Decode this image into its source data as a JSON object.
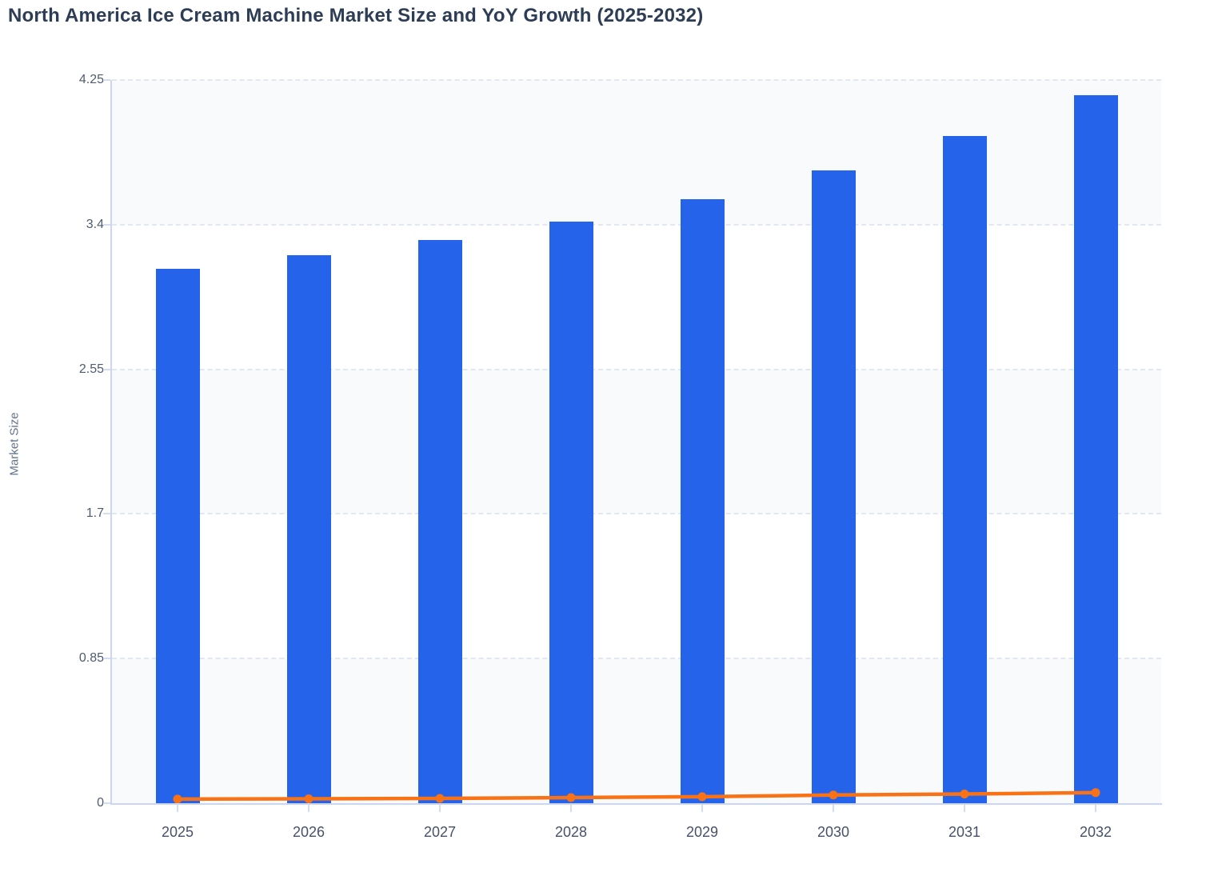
{
  "title": "North America Ice Cream Machine Market Size and YoY Growth (2025-2032)",
  "y_axis": {
    "label": "Market Size",
    "tick_labels": [
      "0",
      "0.85",
      "1.7",
      "2.55",
      "3.4",
      "4.25"
    ]
  },
  "x_axis": {
    "labels": [
      "2025",
      "2026",
      "2027",
      "2028",
      "2029",
      "2030",
      "2031",
      "2032"
    ]
  },
  "chart_data": {
    "type": "bar",
    "title": "North America Ice Cream Machine Market Size and YoY Growth (2025-2032)",
    "categories": [
      "2025",
      "2026",
      "2027",
      "2028",
      "2029",
      "2030",
      "2031",
      "2032"
    ],
    "series": [
      {
        "name": "Market Size",
        "kind": "bar",
        "color": "#2563eb",
        "values": [
          3.14,
          3.22,
          3.31,
          3.42,
          3.55,
          3.72,
          3.92,
          4.16
        ]
      },
      {
        "name": "YoY Growth",
        "kind": "line",
        "color": "#f97316",
        "values": [
          0.024,
          0.026,
          0.028,
          0.033,
          0.038,
          0.048,
          0.054,
          0.062
        ]
      }
    ],
    "xlabel": "",
    "ylabel": "Market Size",
    "ylim": [
      0,
      4.25
    ],
    "yticks": [
      0,
      0.85,
      1.7,
      2.55,
      3.4,
      4.25
    ],
    "grid": "horizontal-dashed",
    "legend_position": "none",
    "plot_bands": "alternating shaded bands between gridlines, shaded at top"
  },
  "colors": {
    "bar_fill": "#2563eb",
    "line": "#f97316",
    "band_shaded": "#f8fafc",
    "band_plain": "#ffffff",
    "gridline": "#e3e7ef",
    "axis_line": "#ccd5f2",
    "title_text": "#2d3d55",
    "y_tick_text": "#4f5b6e",
    "x_tick_text": "#46516b"
  }
}
